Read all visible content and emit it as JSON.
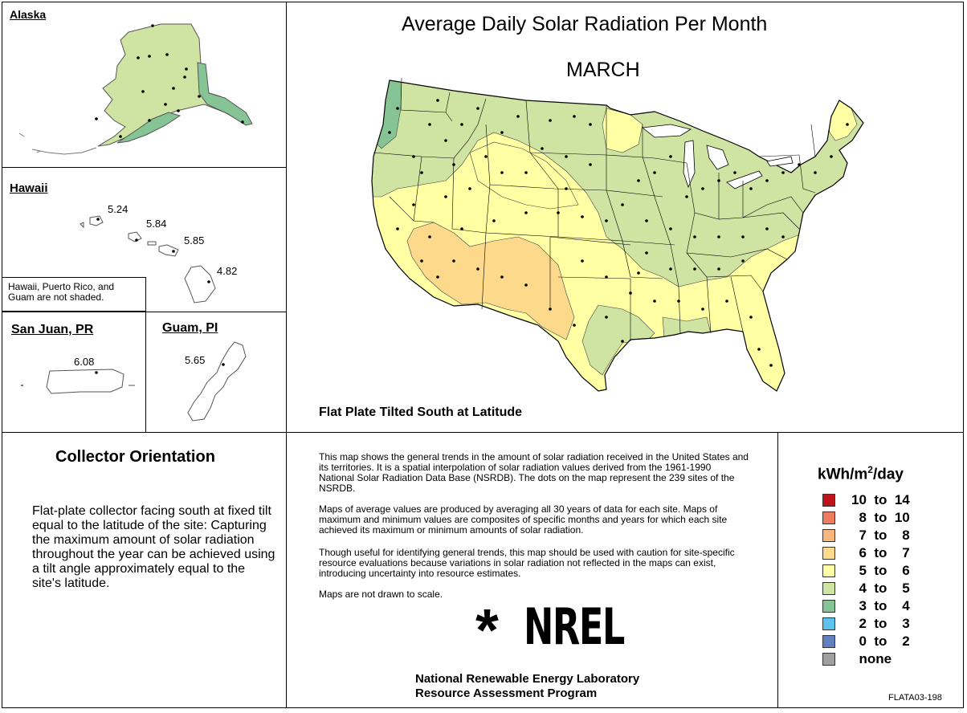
{
  "map": {
    "title": "Average Daily Solar Radiation Per Month",
    "month": "MARCH",
    "subtitle": "Flat Plate Tilted South at Latitude",
    "footer_code": "FLATA03-198"
  },
  "insets": {
    "alaska": {
      "label": "Alaska"
    },
    "hawaii": {
      "label": "Hawaii",
      "values": [
        "5.24",
        "5.84",
        "5.85",
        "4.82"
      ],
      "note": "Hawaii, Puerto Rico, and Guam are not shaded."
    },
    "san_juan": {
      "label": "San Juan, PR",
      "value": "6.08"
    },
    "guam": {
      "label": "Guam, PI",
      "value": "5.65"
    }
  },
  "collector": {
    "heading": "Collector Orientation",
    "text": "Flat-plate collector facing south at fixed tilt equal to the latitude of the site:  Capturing the maximum amount of solar radiation throughout the year can be achieved using a tilt angle approximately equal to the site's latitude."
  },
  "description": {
    "p1": "This map shows the general trends in the amount of solar radiation received in the United States and its territories.  It is a spatial interpolation of solar radiation values derived from the 1961-1990 National Solar Radiation Data Base (NSRDB).  The dots on the map represent the 239 sites of the NSRDB.",
    "p2": "Maps of average values are produced by averaging all 30 years of data for each site. Maps of maximum and minimum values are composites of specific months and years for which each site achieved its maximum or minimum amounts of solar radiation.",
    "p3": "Though useful for identifying general trends, this map should be used with caution for site-specific resource evaluations because variations in solar radiation not reflected in the maps can exist, introducing uncertainty into resource estimates.",
    "p4": "Maps are not drawn to scale."
  },
  "logo": {
    "star": "*",
    "word": "NREL",
    "org": "National Renewable Energy Laboratory",
    "program": "Resource Assessment Program"
  },
  "legend": {
    "unit_base": "kWh/m",
    "unit_sup": "2",
    "unit_tail": "/day",
    "items": [
      {
        "label": "10  to  14",
        "color": "#c0141c"
      },
      {
        "label": "  8  to  10",
        "color": "#ee7b5e"
      },
      {
        "label": "  7  to    8",
        "color": "#f9b77e"
      },
      {
        "label": "  6  to    7",
        "color": "#fdd98c"
      },
      {
        "label": "  5  to    6",
        "color": "#ffffa4"
      },
      {
        "label": "  4  to    5",
        "color": "#cfe4a2"
      },
      {
        "label": "  3  to    4",
        "color": "#86c495"
      },
      {
        "label": "  2  to    3",
        "color": "#5cc3ec"
      },
      {
        "label": "  0  to    2",
        "color": "#6080c0"
      },
      {
        "label": "  none",
        "color": "#a0a0a0"
      }
    ]
  }
}
